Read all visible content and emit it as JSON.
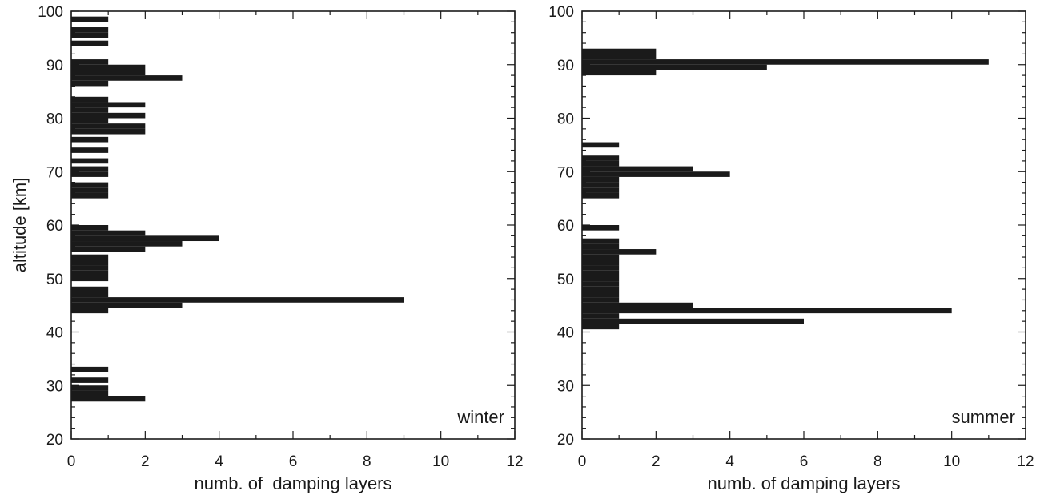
{
  "chart_data": [
    {
      "type": "bar",
      "orientation": "horizontal",
      "annotation": "winter",
      "xlabel": "numb. of  damping layers",
      "ylabel": "altitude [km]",
      "xlim": [
        0,
        12
      ],
      "ylim": [
        20,
        100
      ],
      "xticks": [
        0,
        2,
        4,
        6,
        8,
        10,
        12
      ],
      "yticks": [
        20,
        30,
        40,
        50,
        60,
        70,
        80,
        90,
        100
      ],
      "altitude_km": [
        27.5,
        28.5,
        29.5,
        31,
        33,
        44,
        45,
        46,
        47,
        48,
        50,
        51,
        52,
        53,
        54,
        55.5,
        56.5,
        57.5,
        58.5,
        59.5,
        65.5,
        66.5,
        67.5,
        69.5,
        70.5,
        72,
        74,
        76,
        77.5,
        78.5,
        79.5,
        80.5,
        81.5,
        82.5,
        83.5,
        86.5,
        87.5,
        88.5,
        89.5,
        90.5,
        94,
        95.5,
        96.5,
        98.5
      ],
      "values": [
        2,
        1,
        1,
        1,
        1,
        1,
        3,
        9,
        1,
        1,
        1,
        1,
        1,
        1,
        1,
        2,
        3,
        4,
        2,
        1,
        1,
        1,
        1,
        1,
        1,
        1,
        1,
        1,
        2,
        2,
        1,
        2,
        1,
        2,
        1,
        1,
        3,
        2,
        2,
        1,
        1,
        1,
        1,
        1
      ]
    },
    {
      "type": "bar",
      "orientation": "horizontal",
      "annotation": "summer",
      "xlabel": "numb. of damping layers",
      "ylabel": "",
      "xlim": [
        0,
        12
      ],
      "ylim": [
        20,
        100
      ],
      "xticks": [
        0,
        2,
        4,
        6,
        8,
        10,
        12
      ],
      "yticks": [
        20,
        30,
        40,
        50,
        60,
        70,
        80,
        90,
        100
      ],
      "altitude_km": [
        41,
        42,
        43,
        44,
        45,
        46,
        47,
        48,
        49,
        50,
        51,
        52,
        53,
        54,
        55,
        56,
        57,
        59.5,
        65.5,
        66.5,
        67.5,
        68.5,
        69.5,
        70.5,
        71.5,
        72.5,
        75,
        88.5,
        89.5,
        90.5,
        91.5,
        92.5
      ],
      "values": [
        1,
        6,
        1,
        10,
        3,
        1,
        1,
        1,
        1,
        1,
        1,
        1,
        1,
        1,
        2,
        1,
        1,
        1,
        1,
        1,
        1,
        1,
        4,
        3,
        1,
        1,
        1,
        2,
        5,
        11,
        2,
        2
      ]
    }
  ]
}
